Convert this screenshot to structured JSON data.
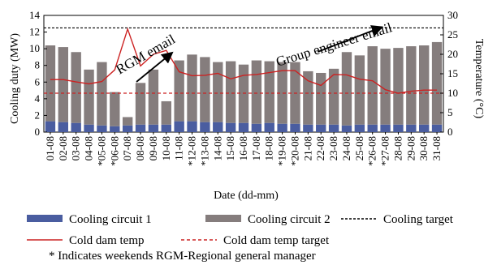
{
  "chart_data": {
    "type": "bar",
    "categories": [
      "01-08",
      "02-08",
      "03-08",
      "04-08",
      "05-08",
      "06-08",
      "07-08",
      "08-08",
      "09-08",
      "10-08",
      "11-08",
      "12-08",
      "13-08",
      "14-08",
      "15-08",
      "16-08",
      "17-08",
      "18-08",
      "19-08",
      "20-08",
      "21-08",
      "22-08",
      "23-08",
      "24-08",
      "25-08",
      "26-08",
      "27-08",
      "28-08",
      "29-08",
      "30-08",
      "31-08"
    ],
    "weekend_marker": "*",
    "weekend_days": [
      "05-08",
      "06-08",
      "12-08",
      "13-08",
      "19-08",
      "20-08",
      "26-08",
      "27-08"
    ],
    "stacked": true,
    "series": [
      {
        "name": "Cooling circuit 1",
        "type": "bar",
        "axis": "left",
        "color": "#4a5da0",
        "values": [
          1.3,
          1.2,
          1.1,
          0.9,
          0.8,
          0.7,
          0.8,
          0.9,
          0.9,
          0.9,
          1.3,
          1.3,
          1.2,
          1.2,
          1.1,
          1.1,
          1.0,
          1.1,
          1.0,
          1.0,
          0.9,
          0.9,
          0.9,
          0.8,
          0.9,
          0.9,
          0.9,
          0.9,
          0.9,
          0.9,
          0.9
        ]
      },
      {
        "name": "Cooling circuit 2",
        "type": "bar",
        "axis": "left",
        "color": "#857d7d",
        "values": [
          9.1,
          9.0,
          8.5,
          6.6,
          7.6,
          4.1,
          1.0,
          5.0,
          6.6,
          2.8,
          7.3,
          8.0,
          7.8,
          7.2,
          7.4,
          7.0,
          7.6,
          7.4,
          7.4,
          7.4,
          6.4,
          6.2,
          6.7,
          8.8,
          8.3,
          9.4,
          9.1,
          9.2,
          9.4,
          9.5,
          9.9
        ]
      },
      {
        "name": "Cooling target",
        "type": "hline",
        "axis": "left",
        "value": 12.5,
        "color": "#000000",
        "dash": "3,2"
      },
      {
        "name": "Cold dam temp",
        "type": "line",
        "axis": "right",
        "color": "#cc2222",
        "values": [
          13.5,
          13.5,
          12.9,
          12.4,
          13.0,
          16.0,
          26.5,
          17.0,
          20.0,
          21.0,
          15.5,
          14.5,
          14.6,
          15.1,
          13.7,
          14.6,
          14.8,
          15.3,
          15.8,
          15.8,
          13.2,
          12.0,
          14.8,
          14.7,
          13.6,
          13.2,
          10.9,
          10.0,
          10.5,
          10.8,
          10.8
        ]
      },
      {
        "name": "Cold dam temp target",
        "type": "hline",
        "axis": "right",
        "value": 10,
        "color": "#cc2222",
        "dash": "4,3"
      }
    ],
    "ylabel": "Cooling duty (MW)",
    "y2label": "Temperature (°C)",
    "xlabel": "Date (dd-mm)",
    "ylim": [
      0,
      14
    ],
    "yticks": [
      0,
      2,
      4,
      6,
      8,
      10,
      12,
      14
    ],
    "y2lim": [
      0,
      30
    ],
    "y2ticks": [
      0,
      5,
      10,
      15,
      20,
      25,
      30
    ],
    "annotations": [
      {
        "text": "RGM email",
        "from_day": "08-08",
        "to_day": "10-08"
      },
      {
        "text": "Group engineer email",
        "from_day": "22-08",
        "to_day": "26-08"
      }
    ],
    "legend_position": "bottom"
  },
  "note": "* Indicates weekends RGM-Regional general manager"
}
